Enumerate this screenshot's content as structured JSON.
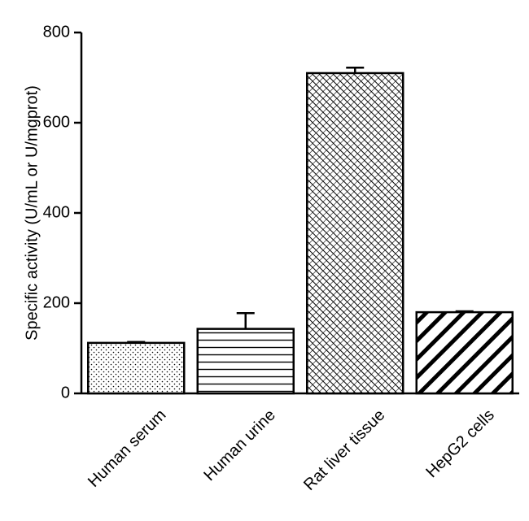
{
  "chart_data": {
    "type": "bar",
    "title": "",
    "xlabel": "",
    "ylabel": "Specific activity (U/mL or U/mgprot)",
    "categories": [
      "Human serum",
      "Human urine",
      "Rat liver tissue",
      "HepG2 cells"
    ],
    "values": [
      112,
      143,
      710,
      180
    ],
    "errors": [
      2,
      35,
      12,
      2
    ],
    "patterns": [
      "dots",
      "horizontal-lines",
      "crosshatch",
      "diagonal-stripes"
    ],
    "ylim": [
      0,
      800
    ],
    "yticks": [
      0,
      200,
      400,
      600,
      800
    ],
    "grid": false,
    "legend": "none",
    "colors": {
      "bar_fill": "#ffffff",
      "stroke": "#000000"
    }
  }
}
